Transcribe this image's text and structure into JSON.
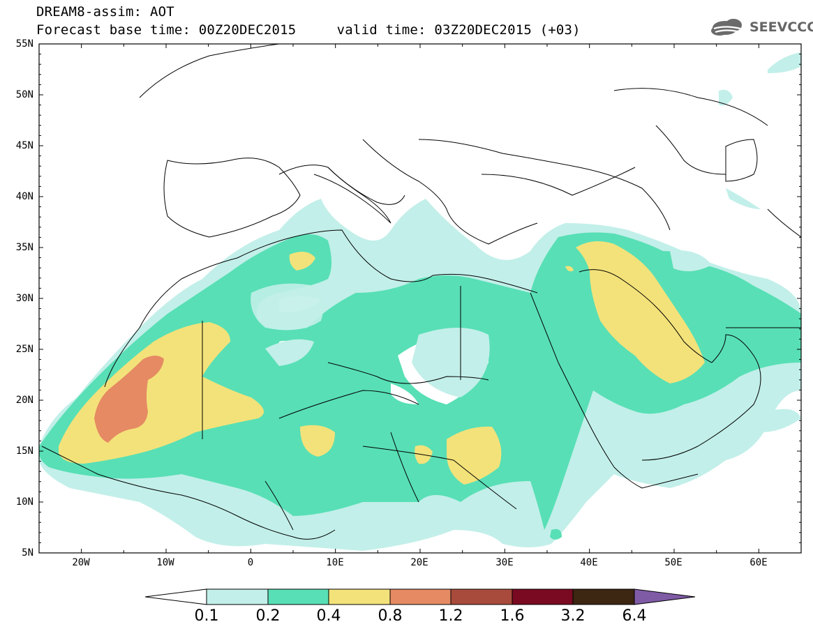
{
  "title": {
    "line1": "DREAM8-assim: AOT",
    "base_time": "Forecast base time: 00Z20DEC2015",
    "valid_time": "valid time: 03Z20DEC2015 (+03)"
  },
  "logo": {
    "text": "SEEVCCC",
    "icon": "cloud-icon"
  },
  "map": {
    "variable": "AOT",
    "lat_labels": [
      "55N",
      "50N",
      "45N",
      "40N",
      "35N",
      "30N",
      "25N",
      "20N",
      "15N",
      "10N",
      "5N"
    ],
    "lon_labels": [
      "20W",
      "10W",
      "0",
      "10E",
      "20E",
      "30E",
      "40E",
      "50E",
      "60E"
    ],
    "lon_range": [
      -25,
      65
    ],
    "lat_range": [
      5,
      55
    ]
  },
  "colorbar": {
    "labels": [
      "0.1",
      "0.2",
      "0.4",
      "0.8",
      "1.2",
      "1.6",
      "3.2",
      "6.4"
    ],
    "colors": [
      "#ffffff",
      "#c2efe9",
      "#58dfb5",
      "#f3e27a",
      "#e58a63",
      "#a94b3c",
      "#7a0a22",
      "#3d2612",
      "#7f5ba5"
    ]
  }
}
